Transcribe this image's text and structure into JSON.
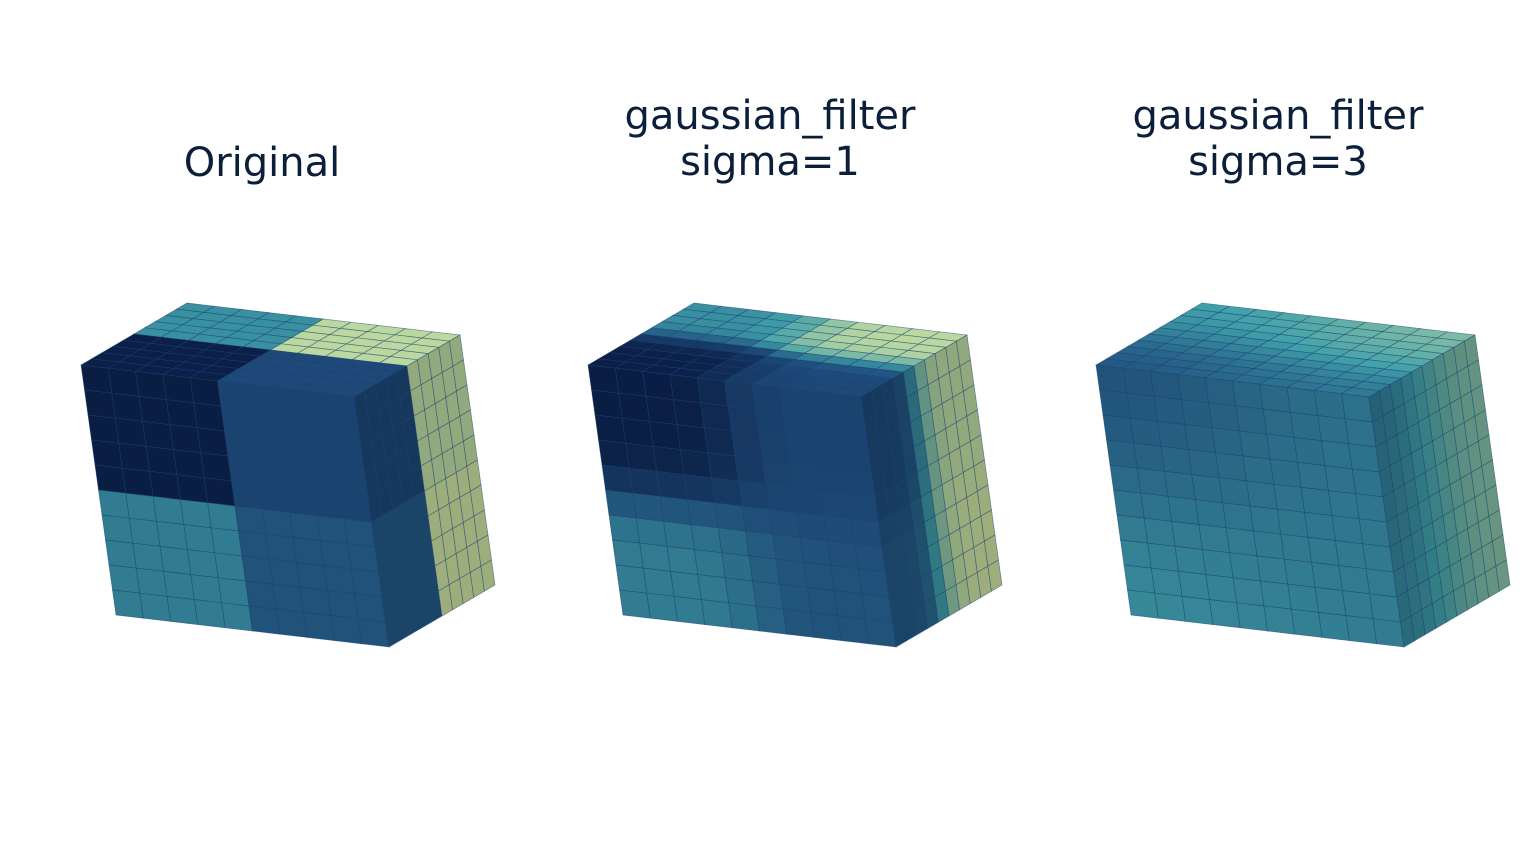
{
  "figure": {
    "panels": [
      {
        "id": "original",
        "title_lines": [
          "Original"
        ],
        "blur": 0
      },
      {
        "id": "sigma1",
        "title_lines": [
          "gaussian_filter",
          "sigma=1"
        ],
        "blur": 1
      },
      {
        "id": "sigma3",
        "title_lines": [
          "gaussian_filter",
          "sigma=3"
        ],
        "blur": 3
      }
    ],
    "colormap": {
      "name": "YlGnBu",
      "dark": "#0b1f48",
      "mid_dark": "#1f4e7e",
      "mid": "#40a0aa",
      "light_mid": "#8fc3a4",
      "light": "#d8e69e"
    },
    "grid": {
      "voxels_per_side": 10
    }
  }
}
